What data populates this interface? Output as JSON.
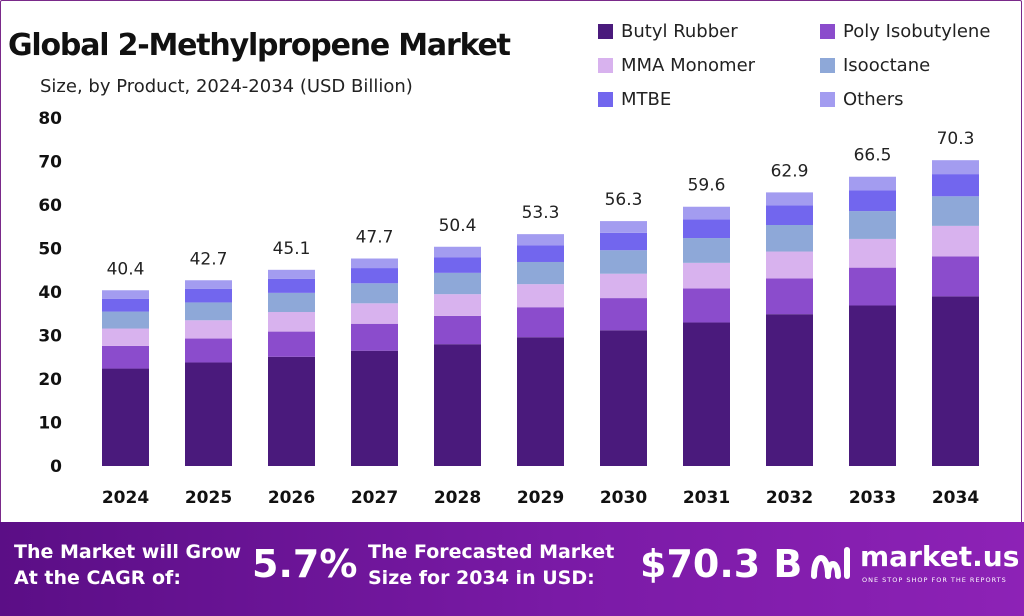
{
  "title": "Global 2-Methylpropene Market",
  "subtitle": "Size, by Product, 2024-2034 (USD Billion)",
  "colors": {
    "butyl_rubber": "#4a1a7c",
    "poly_isobutylene": "#8b4ccc",
    "mma_monomer": "#d8b2ee",
    "isooctane": "#8ea8d8",
    "mtbe": "#7266ee",
    "others": "#a39cf0",
    "bottom_bar": "#6a1496"
  },
  "chart_data": {
    "type": "bar",
    "stacked": true,
    "title": "Global 2-Methylpropene Market",
    "subtitle": "Size, by Product, 2024-2034 (USD Billion)",
    "categories": [
      "2024",
      "2025",
      "2026",
      "2027",
      "2028",
      "2029",
      "2030",
      "2031",
      "2032",
      "2033",
      "2034"
    ],
    "ylim": [
      0,
      80
    ],
    "yticks": [
      0,
      10,
      20,
      30,
      40,
      50,
      60,
      70,
      80
    ],
    "grid": false,
    "legend_position": "top-right",
    "totals": [
      "40.4",
      "42.7",
      "45.1",
      "47.7",
      "50.4",
      "53.3",
      "56.3",
      "59.6",
      "62.9",
      "66.5",
      "70.3"
    ],
    "series": [
      {
        "name": "Butyl Rubber",
        "color": "#4a1a7c",
        "values": [
          22.4,
          23.8,
          25.1,
          26.5,
          28.0,
          29.6,
          31.2,
          33.0,
          34.9,
          36.9,
          39.0
        ]
      },
      {
        "name": "Poly Isobutylene",
        "color": "#8b4ccc",
        "values": [
          5.2,
          5.5,
          5.8,
          6.2,
          6.5,
          6.9,
          7.4,
          7.8,
          8.2,
          8.7,
          9.2
        ]
      },
      {
        "name": "MMA Monomer",
        "color": "#d8b2ee",
        "values": [
          4.0,
          4.2,
          4.5,
          4.7,
          5.0,
          5.3,
          5.6,
          5.9,
          6.2,
          6.6,
          7.0
        ]
      },
      {
        "name": "Isooctane",
        "color": "#8ea8d8",
        "values": [
          3.9,
          4.1,
          4.4,
          4.6,
          4.9,
          5.1,
          5.4,
          5.7,
          6.1,
          6.4,
          6.8
        ]
      },
      {
        "name": "MTBE",
        "color": "#7266ee",
        "values": [
          2.9,
          3.1,
          3.2,
          3.5,
          3.6,
          3.8,
          4.0,
          4.3,
          4.5,
          4.8,
          5.1
        ]
      },
      {
        "name": "Others",
        "color": "#a39cf0",
        "values": [
          2.0,
          2.0,
          2.1,
          2.2,
          2.4,
          2.6,
          2.7,
          2.9,
          3.0,
          3.1,
          3.2
        ]
      }
    ]
  },
  "legend": [
    {
      "label": "Butyl Rubber",
      "color": "#4a1a7c"
    },
    {
      "label": "Poly Isobutylene",
      "color": "#8b4ccc"
    },
    {
      "label": "MMA Monomer",
      "color": "#d8b2ee"
    },
    {
      "label": "Isooctane",
      "color": "#8ea8d8"
    },
    {
      "label": "MTBE",
      "color": "#7266ee"
    },
    {
      "label": "Others",
      "color": "#a39cf0"
    }
  ],
  "footer": {
    "cagr_label_line1": "The Market will Grow",
    "cagr_label_line2": "At the CAGR of:",
    "cagr_value": "5.7%",
    "forecast_label_line1": "The Forecasted Market",
    "forecast_label_line2": "Size for 2034 in USD:",
    "forecast_value": "$70.3 B",
    "brand_name": "market.us",
    "brand_tagline": "ONE STOP SHOP FOR THE REPORTS",
    "brand_icon": "market-us-logo-icon"
  }
}
